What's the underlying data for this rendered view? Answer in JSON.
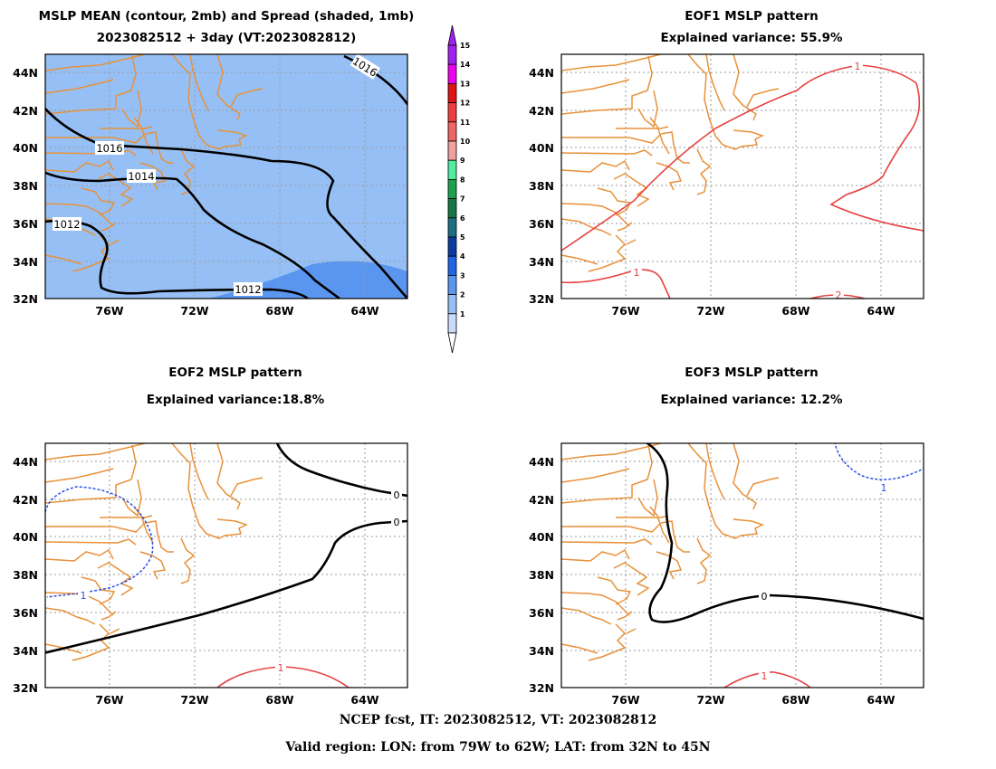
{
  "panels": [
    {
      "title_line1": "MSLP MEAN (contour, 2mb) and Spread (shaded, 1mb)",
      "title_line2": "2023082512 + 3day (VT:2023082812)"
    },
    {
      "title_line1": "EOF1 MSLP pattern",
      "title_line2": "Explained variance: 55.9%"
    },
    {
      "title_line1": "EOF2 MSLP pattern",
      "title_line2": "Explained variance:18.8%"
    },
    {
      "title_line1": "EOF3 MSLP pattern",
      "title_line2": "Explained variance: 12.2%"
    }
  ],
  "axes": {
    "lat_labels": [
      "44N",
      "42N",
      "40N",
      "38N",
      "36N",
      "34N",
      "32N"
    ],
    "lon_labels": [
      "76W",
      "72W",
      "68W",
      "64W"
    ]
  },
  "contour_labels": {
    "mean": [
      "1016",
      "1016",
      "1014",
      "1012",
      "1012"
    ],
    "eof1": [
      "1",
      "1",
      "2"
    ],
    "eof2": [
      "0",
      "0",
      "1",
      "1"
    ],
    "eof3": [
      "0",
      "1",
      "1"
    ]
  },
  "colorbar": {
    "labels": [
      "15",
      "14",
      "13",
      "12",
      "11",
      "10",
      "9",
      "8",
      "7",
      "6",
      "5",
      "4",
      "3",
      "2",
      "1"
    ],
    "colors": [
      "#a020f0",
      "#f000f0",
      "#e01414",
      "#f03c3c",
      "#f06464",
      "#f0a0a0",
      "#50eca0",
      "#1ca050",
      "#147846",
      "#1e6e82",
      "#0a3ca0",
      "#1e64e6",
      "#5a96f0",
      "#96c0f5",
      "#c8dcfa"
    ]
  },
  "footer": {
    "line1": "NCEP fcst, IT: 2023082512, VT: 2023082812",
    "line2": "Valid region: LON: from 79W to 62W; LAT: from 32N to 45N"
  }
}
